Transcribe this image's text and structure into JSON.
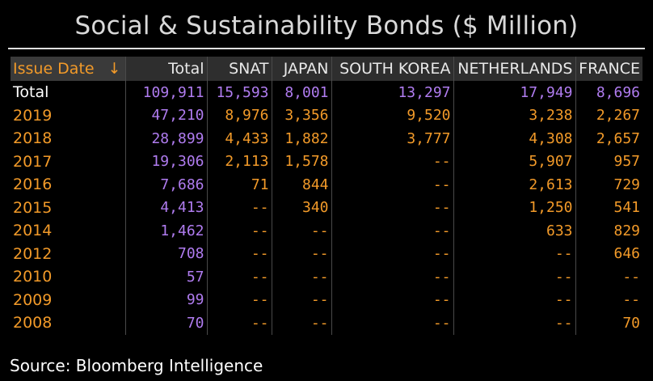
{
  "title": "Social & Sustainability Bonds ($ Million)",
  "source": "Source: Bloomberg Intelligence",
  "sort_indicator": "↓",
  "table": {
    "headers": [
      "Issue Date",
      "Total",
      "SNAT",
      "JAPAN",
      "SOUTH KOREA",
      "NETHERLANDS",
      "FRANCE"
    ],
    "rows": [
      [
        "Total",
        "109,911",
        "15,593",
        "8,001",
        "13,297",
        "17,949",
        "8,696"
      ],
      [
        "2019",
        "47,210",
        "8,976",
        "3,356",
        "9,520",
        "3,238",
        "2,267"
      ],
      [
        "2018",
        "28,899",
        "4,433",
        "1,882",
        "3,777",
        "4,308",
        "2,657"
      ],
      [
        "2017",
        "19,306",
        "2,113",
        "1,578",
        "--",
        "5,907",
        "957"
      ],
      [
        "2016",
        "7,686",
        "71",
        "844",
        "--",
        "2,613",
        "729"
      ],
      [
        "2015",
        "4,413",
        "--",
        "340",
        "--",
        "1,250",
        "541"
      ],
      [
        "2014",
        "1,462",
        "--",
        "--",
        "--",
        "633",
        "829"
      ],
      [
        "2012",
        "708",
        "--",
        "--",
        "--",
        "--",
        "646"
      ],
      [
        "2010",
        "57",
        "--",
        "--",
        "--",
        "--",
        "--"
      ],
      [
        "2009",
        "99",
        "--",
        "--",
        "--",
        "--",
        "--"
      ],
      [
        "2008",
        "70",
        "--",
        "--",
        "--",
        "--",
        "70"
      ]
    ]
  },
  "colors": {
    "accent_orange": "#f29a29",
    "total_purple": "#b07cf0",
    "header_bg": "#2e2e2e",
    "background": "#000000"
  }
}
